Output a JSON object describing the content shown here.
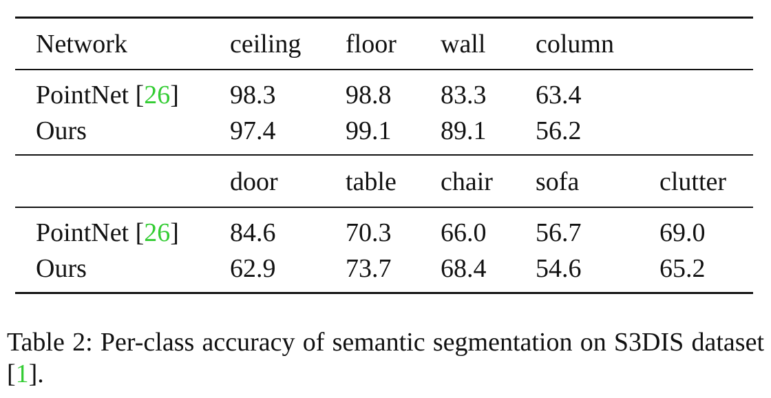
{
  "table": {
    "section1": {
      "header": [
        "Network",
        "ceiling",
        "floor",
        "wall",
        "column"
      ],
      "rows": [
        {
          "name": "PointNet",
          "cite": "26",
          "values": [
            "98.3",
            "98.8",
            "83.3",
            "63.4"
          ]
        },
        {
          "name": "Ours",
          "cite": "",
          "values": [
            "97.4",
            "99.1",
            "89.1",
            "56.2"
          ]
        }
      ]
    },
    "section2": {
      "header": [
        "",
        "door",
        "table",
        "chair",
        "sofa",
        "clutter"
      ],
      "rows": [
        {
          "name": "PointNet",
          "cite": "26",
          "values": [
            "84.6",
            "70.3",
            "66.0",
            "56.7",
            "69.0"
          ]
        },
        {
          "name": "Ours",
          "cite": "",
          "values": [
            "62.9",
            "73.7",
            "68.4",
            "54.6",
            "65.2"
          ]
        }
      ]
    }
  },
  "caption": {
    "label": "Table 2:",
    "text_before": "Per-class accuracy of semantic segmentation on S3DIS dataset [",
    "cite": "1",
    "text_after": "]."
  },
  "colors": {
    "citation": "#33cc33",
    "text": "#111111"
  }
}
